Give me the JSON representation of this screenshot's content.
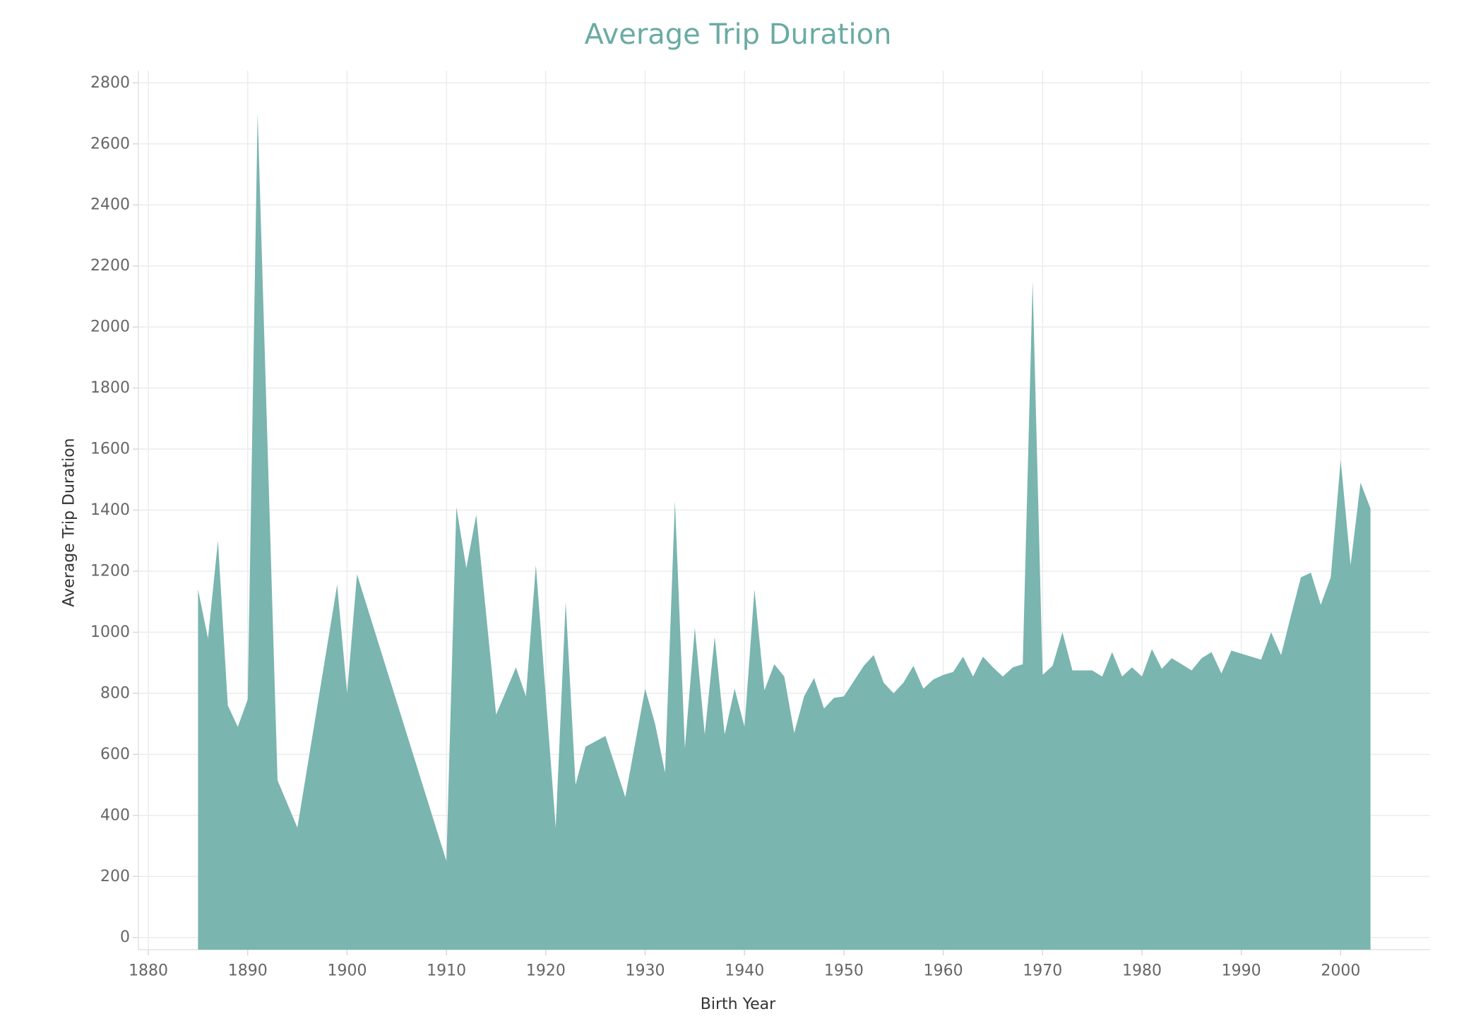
{
  "chart_data": {
    "type": "area",
    "title": "Average Trip Duration",
    "xlabel": "Birth Year",
    "ylabel": "Average Trip Duration",
    "xlim": [
      1879,
      2009
    ],
    "ylim": [
      -40,
      2840
    ],
    "x_ticks": [
      1880,
      1890,
      1900,
      1910,
      1920,
      1930,
      1940,
      1950,
      1960,
      1970,
      1980,
      1990,
      2000
    ],
    "y_ticks": [
      0,
      200,
      400,
      600,
      800,
      1000,
      1200,
      1400,
      1600,
      1800,
      2000,
      2200,
      2400,
      2600,
      2800
    ],
    "grid": true,
    "color": "#7ab5b0",
    "series": [
      {
        "x": [
          1885,
          1886,
          1887,
          1888,
          1889,
          1890,
          1891,
          1893,
          1895,
          1899,
          1900,
          1901,
          1910,
          1911,
          1912,
          1913,
          1915,
          1917,
          1918,
          1919,
          1921,
          1922,
          1923,
          1924,
          1926,
          1928,
          1930,
          1931,
          1932,
          1933,
          1934,
          1935,
          1936,
          1937,
          1938,
          1939,
          1940,
          1941,
          1942,
          1943,
          1944,
          1945,
          1946,
          1947,
          1948,
          1949,
          1950,
          1951,
          1952,
          1953,
          1954,
          1955,
          1956,
          1957,
          1958,
          1959,
          1960,
          1961,
          1962,
          1963,
          1964,
          1965,
          1966,
          1967,
          1968,
          1969,
          1970,
          1971,
          1972,
          1973,
          1974,
          1975,
          1976,
          1977,
          1978,
          1979,
          1980,
          1981,
          1982,
          1983,
          1984,
          1985,
          1986,
          1987,
          1988,
          1989,
          1990,
          1991,
          1992,
          1993,
          1994,
          1995,
          1996,
          1997,
          1998,
          1999,
          2000,
          2001,
          2002,
          2003
        ],
        "y": [
          1140,
          980,
          1300,
          760,
          690,
          780,
          2700,
          515,
          360,
          1155,
          800,
          1190,
          250,
          1410,
          1210,
          1385,
          730,
          885,
          790,
          1220,
          360,
          1100,
          500,
          625,
          660,
          460,
          815,
          700,
          540,
          1430,
          620,
          1015,
          665,
          985,
          665,
          815,
          690,
          1140,
          810,
          895,
          855,
          670,
          790,
          850,
          750,
          785,
          790,
          840,
          890,
          925,
          835,
          800,
          835,
          890,
          815,
          845,
          860,
          870,
          920,
          855,
          920,
          885,
          855,
          885,
          895,
          2150,
          860,
          890,
          1000,
          875,
          875,
          875,
          855,
          935,
          855,
          885,
          855,
          945,
          880,
          915,
          895,
          875,
          915,
          935,
          865,
          940,
          930,
          920,
          910,
          1000,
          925,
          1055,
          1180,
          1195,
          1090,
          1180,
          1565,
          1220,
          1490,
          1405
        ]
      }
    ]
  }
}
